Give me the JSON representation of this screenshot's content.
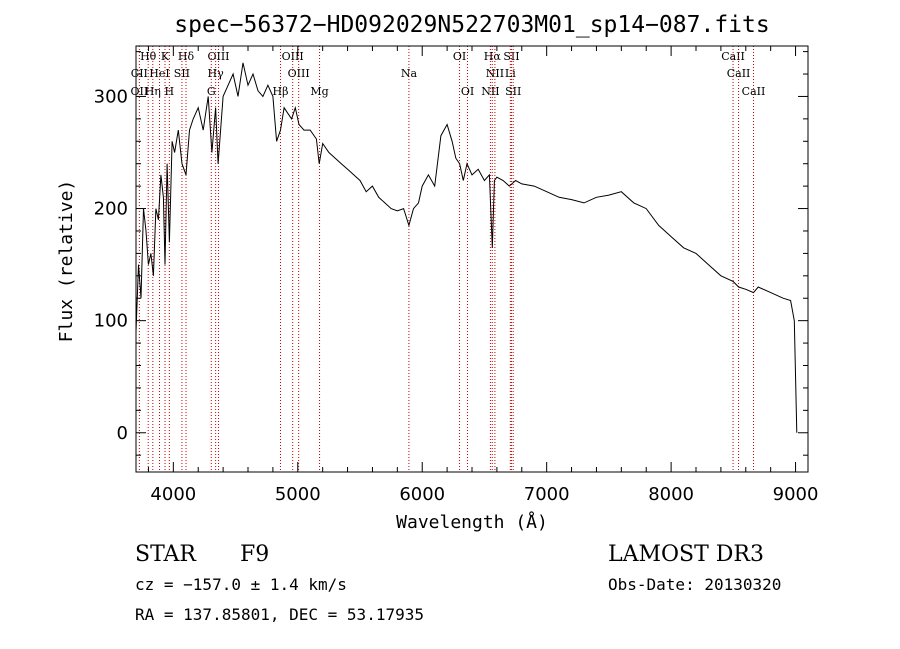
{
  "figure": {
    "object_class": "STAR",
    "subclass": "F9",
    "survey": "LAMOST DR3",
    "redshift_text": "cz = −157.0 ± 1.4 km/s",
    "obs_date_text": "Obs-Date: 20130320",
    "coords_text": "RA = 137.85801, DEC =  53.17935"
  },
  "chart_data": {
    "type": "line",
    "title": "spec−56372−HD092029N522703M01_sp14−087.fits",
    "xlabel": "Wavelength (Å)",
    "ylabel": "Flux (relative)",
    "xlim": [
      3700,
      9100
    ],
    "ylim": [
      -35,
      345
    ],
    "x_ticks": [
      4000,
      5000,
      6000,
      7000,
      8000,
      9000
    ],
    "y_ticks": [
      0,
      100,
      200,
      300
    ],
    "grid": false,
    "series": [
      {
        "x": [
          3700,
          3720,
          3740,
          3760,
          3780,
          3800,
          3820,
          3840,
          3860,
          3880,
          3900,
          3920,
          3933,
          3950,
          3968,
          3990,
          4010,
          4040,
          4070,
          4102,
          4130,
          4160,
          4200,
          4240,
          4280,
          4310,
          4340,
          4360,
          4400,
          4440,
          4480,
          4520,
          4560,
          4600,
          4640,
          4680,
          4720,
          4760,
          4800,
          4830,
          4861,
          4890,
          4920,
          4950,
          4980,
          5010,
          5050,
          5100,
          5150,
          5172,
          5200,
          5250,
          5300,
          5350,
          5400,
          5450,
          5500,
          5550,
          5600,
          5650,
          5700,
          5750,
          5800,
          5850,
          5893,
          5930,
          5970,
          6000,
          6050,
          6100,
          6150,
          6200,
          6240,
          6270,
          6300,
          6330,
          6360,
          6400,
          6450,
          6500,
          6540,
          6563,
          6580,
          6600,
          6650,
          6700,
          6750,
          6800,
          6900,
          7000,
          7100,
          7200,
          7300,
          7400,
          7500,
          7600,
          7700,
          7800,
          7900,
          8000,
          8100,
          8200,
          8300,
          8400,
          8498,
          8542,
          8600,
          8662,
          8700,
          8800,
          8900,
          8960,
          8990,
          9010
        ],
        "y": [
          90,
          150,
          120,
          200,
          180,
          150,
          160,
          140,
          200,
          190,
          230,
          210,
          150,
          240,
          170,
          260,
          250,
          270,
          240,
          230,
          270,
          280,
          290,
          270,
          300,
          250,
          290,
          240,
          300,
          310,
          320,
          300,
          330,
          310,
          320,
          305,
          300,
          310,
          300,
          260,
          270,
          290,
          285,
          280,
          290,
          275,
          270,
          270,
          262,
          240,
          258,
          250,
          245,
          240,
          235,
          230,
          225,
          215,
          220,
          210,
          205,
          200,
          198,
          200,
          185,
          200,
          205,
          220,
          230,
          220,
          265,
          275,
          260,
          245,
          240,
          225,
          240,
          230,
          235,
          225,
          230,
          165,
          225,
          228,
          225,
          220,
          225,
          222,
          220,
          215,
          210,
          208,
          205,
          210,
          212,
          215,
          205,
          200,
          185,
          175,
          165,
          160,
          150,
          140,
          135,
          130,
          128,
          125,
          130,
          125,
          120,
          118,
          100,
          0
        ]
      }
    ],
    "lines": [
      {
        "name": "Hθ",
        "x": 3798,
        "row": 1
      },
      {
        "name": "K",
        "x": 3933,
        "row": 1
      },
      {
        "name": "Hδ",
        "x": 4102,
        "row": 1
      },
      {
        "name": "OIII",
        "x": 4363,
        "row": 1
      },
      {
        "name": "OIII",
        "x": 4959,
        "row": 1
      },
      {
        "name": "OI",
        "x": 6300,
        "row": 1
      },
      {
        "name": "Hα",
        "x": 6563,
        "row": 1
      },
      {
        "name": "SII",
        "x": 6717,
        "row": 1
      },
      {
        "name": "CaII",
        "x": 8498,
        "row": 1
      },
      {
        "name": "CII",
        "x": 3727,
        "row": 2
      },
      {
        "name": "HeI",
        "x": 3889,
        "row": 2
      },
      {
        "name": "SII",
        "x": 4069,
        "row": 2
      },
      {
        "name": "Hγ",
        "x": 4340,
        "row": 2
      },
      {
        "name": "OIII",
        "x": 5007,
        "row": 2
      },
      {
        "name": "Na",
        "x": 5893,
        "row": 2
      },
      {
        "name": "NII",
        "x": 6584,
        "row": 2
      },
      {
        "name": "Li",
        "x": 6708,
        "row": 2
      },
      {
        "name": "CaII",
        "x": 8542,
        "row": 2
      },
      {
        "name": "OII",
        "x": 3727,
        "row": 3
      },
      {
        "name": "Hη",
        "x": 3835,
        "row": 3
      },
      {
        "name": "H",
        "x": 3968,
        "row": 3
      },
      {
        "name": "G",
        "x": 4305,
        "row": 3
      },
      {
        "name": "Hβ",
        "x": 4861,
        "row": 3
      },
      {
        "name": "Mg",
        "x": 5175,
        "row": 3
      },
      {
        "name": "OI",
        "x": 6364,
        "row": 3
      },
      {
        "name": "NII",
        "x": 6548,
        "row": 3
      },
      {
        "name": "SII",
        "x": 6731,
        "row": 3
      },
      {
        "name": "CaII",
        "x": 8662,
        "row": 3
      }
    ],
    "colors": {
      "line_markers": "#cc0000",
      "spectrum": "#000000",
      "axes": "#000000"
    }
  }
}
